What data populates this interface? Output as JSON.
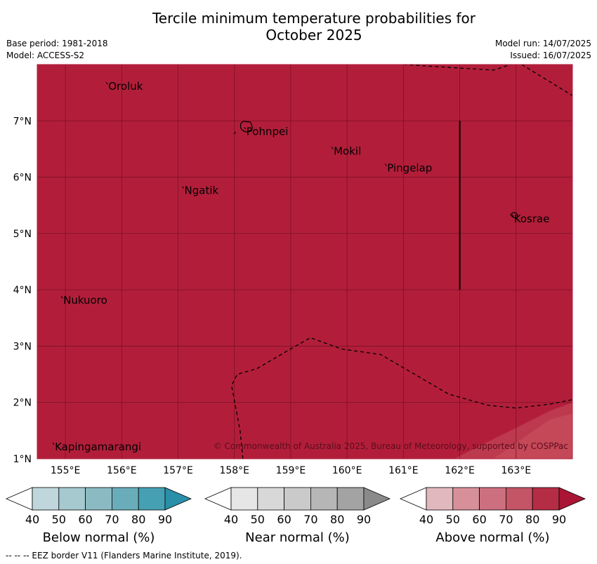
{
  "title_line1": "Tercile minimum temperature probabilities for",
  "title_line2": "October 2025",
  "base_period": "Base period: 1981-2018",
  "model": "Model: ACCESS-S2",
  "model_run": "Model run: 14/07/2025",
  "issued": "Issued: 16/07/2025",
  "copyright": "© Commonwealth of Australia 2025, Bureau of Meteorology, supported by COSPPac",
  "footnote": "-- -- -- EEZ border V11 (Flanders Marine Institute, 2019).",
  "colors": {
    "main_fill": "#b21e3a",
    "light_fill": "#c44858",
    "grid": "#7a1024"
  },
  "map": {
    "lon_range": [
      154.5,
      164.0
    ],
    "lat_range": [
      1.0,
      8.0
    ],
    "lon_ticks": [
      {
        "value": 155,
        "label": "155°E"
      },
      {
        "value": 156,
        "label": "156°E"
      },
      {
        "value": 157,
        "label": "157°E"
      },
      {
        "value": 158,
        "label": "158°E"
      },
      {
        "value": 159,
        "label": "159°E"
      },
      {
        "value": 160,
        "label": "160°E"
      },
      {
        "value": 161,
        "label": "161°E"
      },
      {
        "value": 162,
        "label": "162°E"
      },
      {
        "value": 163,
        "label": "163°E"
      }
    ],
    "lat_ticks": [
      {
        "value": 1,
        "label": "1°N"
      },
      {
        "value": 2,
        "label": "2°N"
      },
      {
        "value": 3,
        "label": "3°N"
      },
      {
        "value": 4,
        "label": "4°N"
      },
      {
        "value": 5,
        "label": "5°N"
      },
      {
        "value": 6,
        "label": "6°N"
      },
      {
        "value": 7,
        "label": "7°N"
      }
    ],
    "places": [
      {
        "name": "Oroluk",
        "lon": 155.75,
        "lat": 7.65
      },
      {
        "name": "Pohnpei",
        "lon": 158.2,
        "lat": 6.85
      },
      {
        "name": "Mokil",
        "lon": 159.75,
        "lat": 6.5
      },
      {
        "name": "Pingelap",
        "lon": 160.7,
        "lat": 6.2
      },
      {
        "name": "Ngatik",
        "lon": 157.1,
        "lat": 5.8
      },
      {
        "name": "Kosrae",
        "lon": 162.95,
        "lat": 5.3
      },
      {
        "name": "Nukuoro",
        "lon": 154.95,
        "lat": 3.85
      },
      {
        "name": "Kapingamarangi",
        "lon": 154.8,
        "lat": 1.25
      }
    ],
    "eez_lines": [
      [
        [
          161.0,
          8.0
        ],
        [
          162.6,
          7.9
        ],
        [
          162.9,
          8.0
        ]
      ],
      [
        [
          163.1,
          8.0
        ],
        [
          164.0,
          7.45
        ]
      ],
      [
        [
          158.15,
          1.0
        ],
        [
          158.1,
          1.5
        ],
        [
          157.95,
          2.3
        ],
        [
          158.05,
          2.5
        ],
        [
          158.4,
          2.6
        ],
        [
          159.0,
          2.95
        ],
        [
          159.35,
          3.15
        ],
        [
          159.9,
          2.95
        ],
        [
          160.6,
          2.85
        ],
        [
          161.2,
          2.5
        ],
        [
          161.8,
          2.15
        ],
        [
          162.5,
          1.95
        ],
        [
          163.0,
          1.9
        ],
        [
          163.6,
          1.97
        ],
        [
          164.0,
          2.05
        ]
      ]
    ],
    "boundary_line": [
      [
        162.0,
        7.0
      ],
      [
        162.0,
        4.0
      ]
    ],
    "light_region": [
      [
        161.9,
        1.0
      ],
      [
        162.3,
        1.2
      ],
      [
        162.9,
        1.5
      ],
      [
        163.6,
        1.85
      ],
      [
        164.0,
        2.0
      ],
      [
        164.0,
        1.0
      ]
    ],
    "lighter_region": [
      [
        162.6,
        1.0
      ],
      [
        163.1,
        1.35
      ],
      [
        163.6,
        1.7
      ],
      [
        164.0,
        1.8
      ],
      [
        164.0,
        1.0
      ]
    ]
  },
  "colorbars": [
    {
      "label": "Below normal (%)",
      "ticks": [
        "40",
        "50",
        "60",
        "70",
        "80",
        "90"
      ],
      "colors": [
        "#ffffff",
        "#bfd6dc",
        "#a6c9d0",
        "#8cbac3",
        "#6aadba",
        "#45a0b3",
        "#2a8fa8"
      ]
    },
    {
      "label": "Near normal (%)",
      "ticks": [
        "40",
        "50",
        "60",
        "70",
        "80",
        "90"
      ],
      "colors": [
        "#ffffff",
        "#e6e6e6",
        "#d8d8d8",
        "#cacaca",
        "#b6b6b6",
        "#a3a3a3",
        "#8a8a8a"
      ]
    },
    {
      "label": "Above normal (%)",
      "ticks": [
        "40",
        "50",
        "60",
        "70",
        "80",
        "90"
      ],
      "colors": [
        "#ffffff",
        "#e2b8bf",
        "#d79099",
        "#cc7080",
        "#c35566",
        "#b52d45",
        "#aa1535"
      ]
    }
  ]
}
